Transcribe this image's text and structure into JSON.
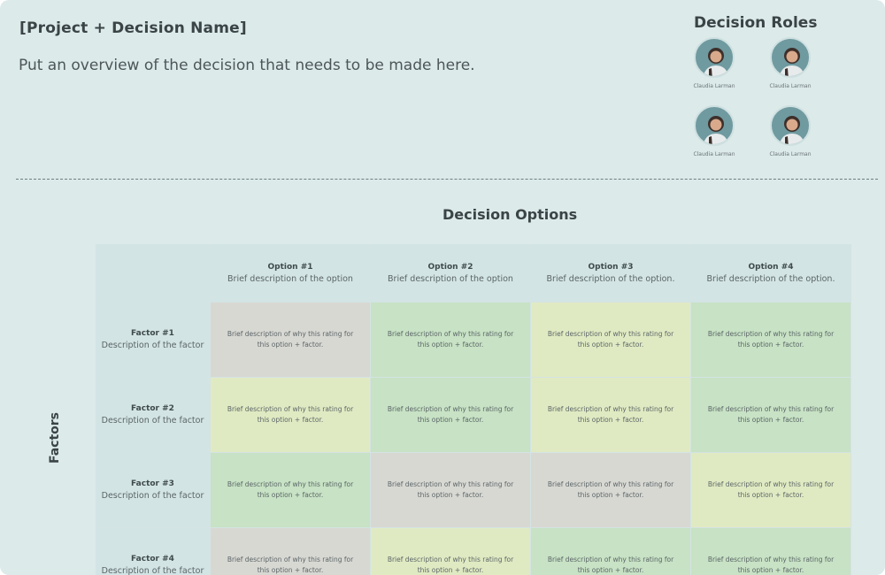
{
  "header": {
    "project_title": "[Project + Decision Name]",
    "overview": "Put an overview of the decision that needs to be made here."
  },
  "roles": {
    "title": "Decision Roles",
    "people": [
      {
        "name": "Claudia Larman"
      },
      {
        "name": "Claudia Larman"
      },
      {
        "name": "Claudia Larman"
      },
      {
        "name": "Claudia Larman"
      }
    ]
  },
  "matrix": {
    "title": "Decision Options",
    "factors_label": "Factors",
    "options": [
      {
        "title": "Option #1",
        "desc": "Brief description of the option"
      },
      {
        "title": "Option #2",
        "desc": "Brief description of the option"
      },
      {
        "title": "Option #3",
        "desc": "Brief description of the option."
      },
      {
        "title": "Option #4",
        "desc": "Brief description of the option."
      }
    ],
    "factors": [
      {
        "title": "Factor #1",
        "desc": "Description of the factor"
      },
      {
        "title": "Factor #2",
        "desc": "Description of the factor"
      },
      {
        "title": "Factor #3",
        "desc": "Description of the factor"
      },
      {
        "title": "Factor #4",
        "desc": "Description of the factor"
      }
    ],
    "cell_text": "Brief description of why this rating for this option + factor.",
    "ratings": [
      [
        "gray",
        "green",
        "yellow",
        "green"
      ],
      [
        "yellow",
        "green",
        "yellow",
        "green"
      ],
      [
        "green",
        "gray",
        "gray",
        "yellow"
      ],
      [
        "gray",
        "yellow",
        "green",
        "green"
      ]
    ]
  },
  "colors": {
    "background": "#dceaea",
    "gray": "#d8d8d3",
    "green": "#c7e2c4",
    "yellow": "#e0eac2"
  }
}
